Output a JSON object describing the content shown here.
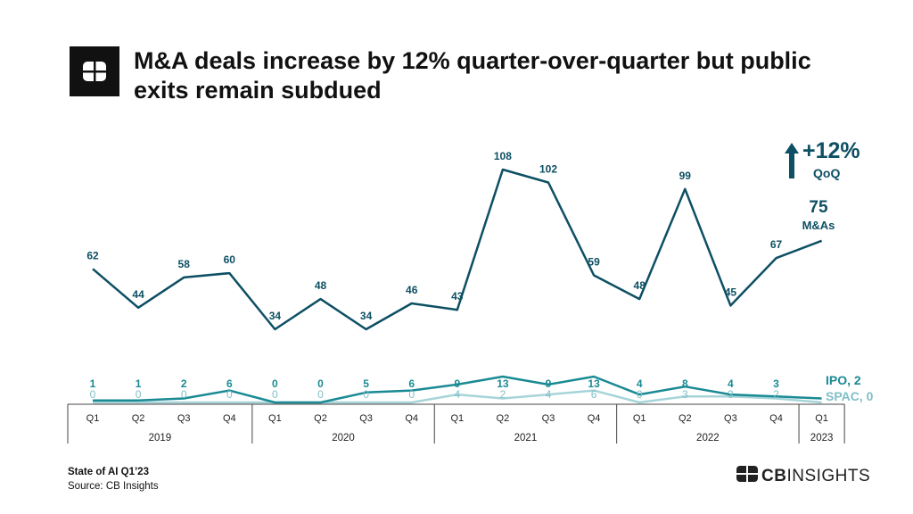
{
  "header": {
    "title": "M&A deals increase by 12% quarter-over-quarter but public exits remain subdued"
  },
  "chart_data": {
    "type": "line",
    "title": "M&A deals increase by 12% quarter-over-quarter but public exits remain subdued",
    "quarters": [
      "Q1",
      "Q2",
      "Q3",
      "Q4",
      "Q1",
      "Q2",
      "Q3",
      "Q4",
      "Q1",
      "Q2",
      "Q3",
      "Q4",
      "Q1",
      "Q2",
      "Q3",
      "Q4",
      "Q1"
    ],
    "years": [
      {
        "label": "2019",
        "quarters": 4
      },
      {
        "label": "2020",
        "quarters": 4
      },
      {
        "label": "2021",
        "quarters": 4
      },
      {
        "label": "2022",
        "quarters": 4
      },
      {
        "label": "2023",
        "quarters": 1
      }
    ],
    "series": [
      {
        "name": "M&As",
        "color": "#0d4f63",
        "values": [
          62,
          44,
          58,
          60,
          34,
          48,
          34,
          46,
          43,
          108,
          102,
          59,
          48,
          99,
          45,
          67,
          75
        ]
      },
      {
        "name": "IPO",
        "color": "#1a8a94",
        "values": [
          1,
          1,
          2,
          6,
          0,
          0,
          5,
          6,
          9,
          13,
          9,
          13,
          4,
          8,
          4,
          3,
          2
        ]
      },
      {
        "name": "SPAC",
        "color": "#a6d4d9",
        "values": [
          0,
          0,
          0,
          0,
          0,
          0,
          0,
          0,
          4,
          2,
          4,
          6,
          0,
          3,
          3,
          2,
          0
        ]
      }
    ],
    "end_labels": {
      "mna_value": "75",
      "mna_label": "M&As",
      "ipo": "IPO, 2",
      "spac": "SPAC, 0"
    },
    "callout": {
      "value": "+12%",
      "label": "QoQ",
      "arrow_color": "#0d4f63"
    }
  },
  "footer": {
    "report": "State of AI Q1’23",
    "source": "Source: CB Insights"
  },
  "brand": {
    "cb": "CB",
    "insights": "INSIGHTS"
  },
  "icons": {
    "header_logo": "cb-logo-icon",
    "brand_mark": "cb-mark-icon",
    "callout_arrow": "arrow-up-icon"
  }
}
